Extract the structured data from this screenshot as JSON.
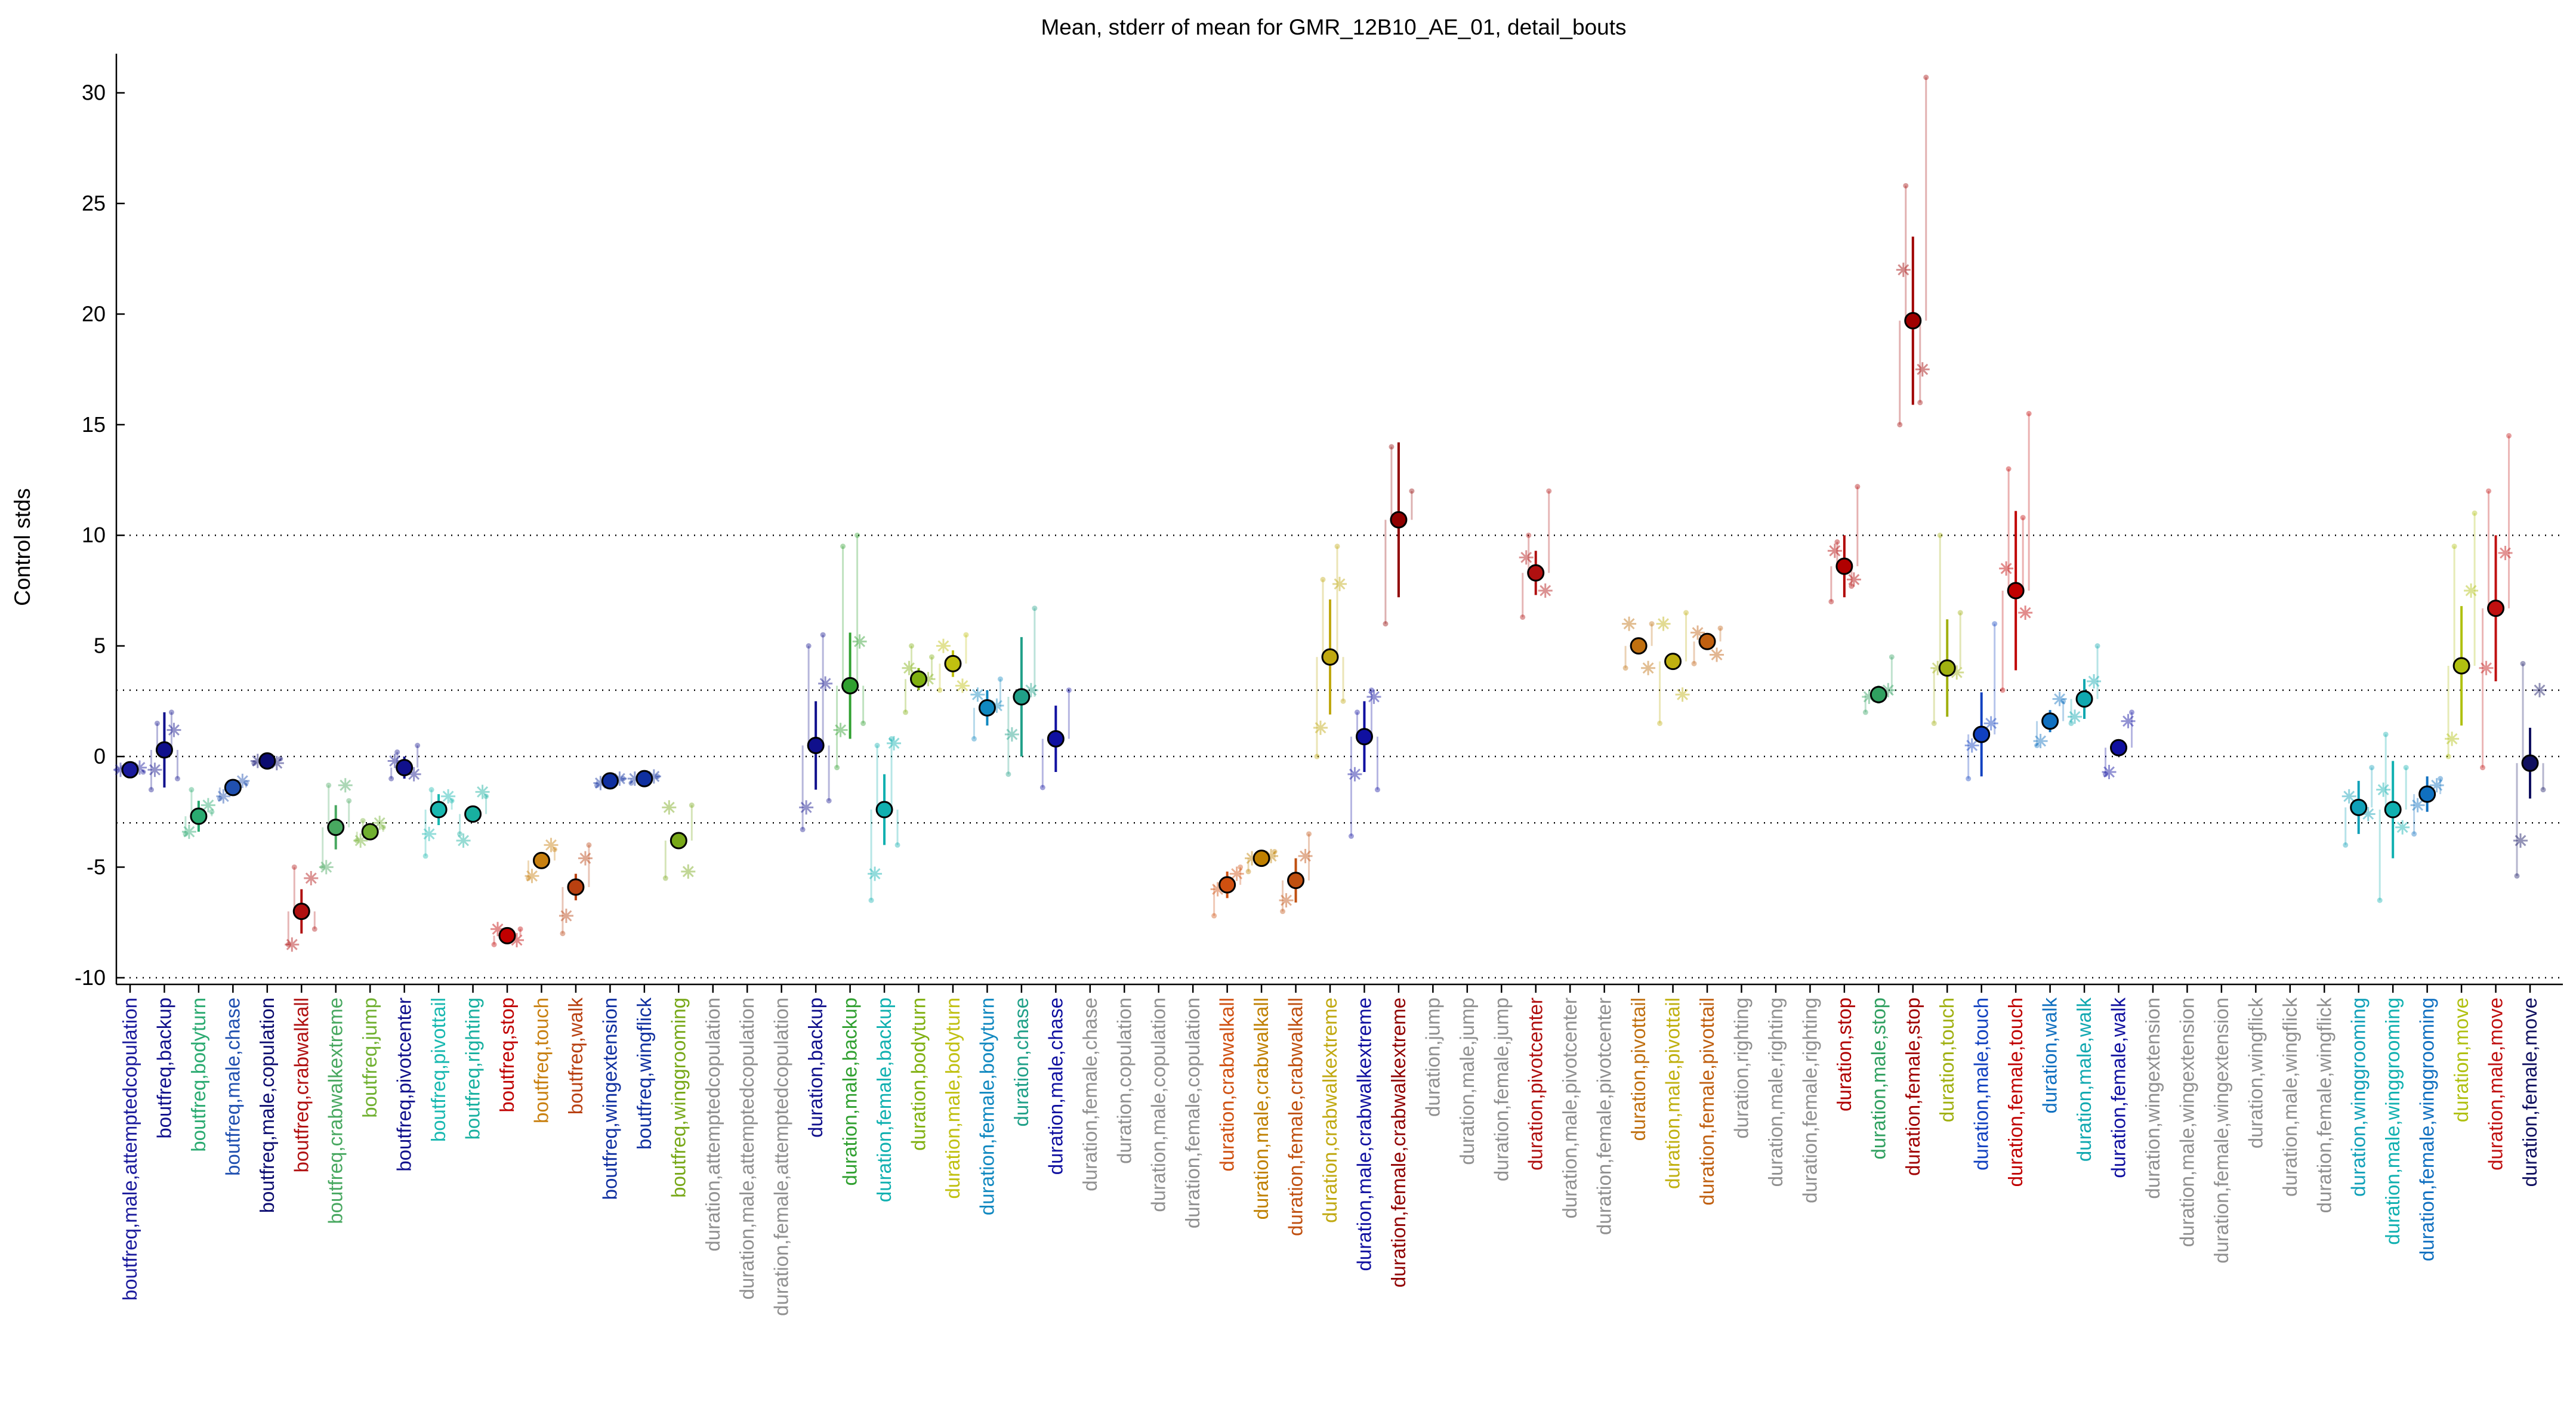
{
  "chart_data": {
    "type": "scatter",
    "title": "Mean, stderr of mean for GMR_12B10_AE_01, detail_bouts",
    "xlabel": "",
    "ylabel": "Control stds",
    "ylim": [
      -10.3,
      31.5
    ],
    "yticks": [
      -10,
      -5,
      0,
      5,
      10,
      15,
      20,
      25,
      30
    ],
    "reference_lines": [
      -10,
      -3,
      0,
      3,
      10
    ],
    "grid": false,
    "categories": [
      {
        "label": "boutfreq,male,attemptedcopulation",
        "color": "#1a1a9c",
        "mean": -0.6,
        "se": 0.3,
        "points": [
          -0.6,
          -0.7,
          -0.5
        ],
        "stars": [
          -0.6,
          -0.5
        ]
      },
      {
        "label": "boutfreq,backup",
        "color": "#10108c",
        "mean": 0.3,
        "se": 1.7,
        "points": [
          -1.5,
          -1.0,
          1.5,
          2.0
        ],
        "stars": [
          -0.6,
          1.2
        ]
      },
      {
        "label": "boutfreq,bodyturn",
        "color": "#2aaa70",
        "mean": -2.7,
        "se": 0.7,
        "points": [
          -3.5,
          -2.5,
          -1.5
        ],
        "stars": [
          -3.4,
          -2.2
        ]
      },
      {
        "label": "boutfreq,male,chase",
        "color": "#2050b0",
        "mean": -1.4,
        "se": 0.3,
        "points": [
          -1.9,
          -1.2
        ],
        "stars": [
          -1.8,
          -1.1
        ]
      },
      {
        "label": "boutfreq,male,copulation",
        "color": "#0c0c70",
        "mean": -0.2,
        "se": 0.2,
        "points": [
          -0.3,
          -0.1
        ],
        "stars": [
          -0.2,
          -0.3
        ]
      },
      {
        "label": "boutfreq,crabwalkall",
        "color": "#b01010",
        "mean": -7.0,
        "se": 1.0,
        "points": [
          -8.5,
          -7.8,
          -5.0
        ],
        "stars": [
          -8.5,
          -5.5
        ]
      },
      {
        "label": "boutfreq,crabwalkextreme",
        "color": "#48a860",
        "mean": -3.2,
        "se": 1.0,
        "points": [
          -5.0,
          -2.0,
          -1.3
        ],
        "stars": [
          -5.0,
          -1.3
        ]
      },
      {
        "label": "boutfreq,jump",
        "color": "#70b030",
        "mean": -3.4,
        "se": 0.3,
        "points": [
          -3.8,
          -3.2,
          -2.9
        ],
        "stars": [
          -3.8,
          -3.0
        ]
      },
      {
        "label": "boutfreq,pivotcenter",
        "color": "#10108c",
        "mean": -0.5,
        "se": 0.5,
        "points": [
          -1.0,
          0.5,
          0.2
        ],
        "stars": [
          -0.2,
          -0.8
        ]
      },
      {
        "label": "boutfreq,pivottail",
        "color": "#18b8b0",
        "mean": -2.4,
        "se": 0.7,
        "points": [
          -4.5,
          -2.0,
          -1.5
        ],
        "stars": [
          -3.5,
          -1.8
        ]
      },
      {
        "label": "boutfreq,righting",
        "color": "#18b0a0",
        "mean": -2.6,
        "se": 0.3,
        "points": [
          -3.5,
          -1.8
        ],
        "stars": [
          -3.8,
          -1.6
        ]
      },
      {
        "label": "boutfreq,stop",
        "color": "#c00000",
        "mean": -8.1,
        "se": 0.3,
        "points": [
          -8.5,
          -7.8
        ],
        "stars": [
          -7.8,
          -8.3
        ]
      },
      {
        "label": "boutfreq,touch",
        "color": "#c88010",
        "mean": -4.7,
        "se": 0.3,
        "points": [
          -5.5,
          -4.2
        ],
        "stars": [
          -5.4,
          -4.0
        ]
      },
      {
        "label": "boutfreq,walk",
        "color": "#b84010",
        "mean": -5.9,
        "se": 0.6,
        "points": [
          -8.0,
          -4.0
        ],
        "stars": [
          -7.2,
          -4.6
        ]
      },
      {
        "label": "boutfreq,wingextension",
        "color": "#1030a0",
        "mean": -1.1,
        "se": 0.2,
        "points": [
          -1.3,
          -1.0
        ],
        "stars": [
          -1.2,
          -1.0
        ]
      },
      {
        "label": "boutfreq,wingflick",
        "color": "#1030a0",
        "mean": -1.0,
        "se": 0.2,
        "points": [
          -1.2,
          -0.9
        ],
        "stars": [
          -1.0,
          -0.9
        ]
      },
      {
        "label": "boutfreq,winggrooming",
        "color": "#78a818",
        "mean": -3.8,
        "se": 0.3,
        "points": [
          -5.5,
          -2.2
        ],
        "stars": [
          -2.3,
          -5.2
        ]
      },
      {
        "label": "duration,attemptedcopulation",
        "color": "#909090",
        "mean": null,
        "se": null,
        "points": [],
        "stars": []
      },
      {
        "label": "duration,male,attemptedcopulation",
        "color": "#909090",
        "mean": null,
        "se": null,
        "points": [],
        "stars": []
      },
      {
        "label": "duration,female,attemptedcopulation",
        "color": "#909090",
        "mean": null,
        "se": null,
        "points": [],
        "stars": []
      },
      {
        "label": "duration,backup",
        "color": "#10108c",
        "mean": 0.5,
        "se": 2.0,
        "points": [
          -3.3,
          -2.0,
          5.0,
          5.5
        ],
        "stars": [
          -2.3,
          3.3
        ]
      },
      {
        "label": "duration,male,backup",
        "color": "#30a030",
        "mean": 3.2,
        "se": 2.4,
        "points": [
          -0.5,
          1.5,
          9.5,
          10.0
        ],
        "stars": [
          1.2,
          5.2
        ]
      },
      {
        "label": "duration,female,backup",
        "color": "#10b0b0",
        "mean": -2.4,
        "se": 1.6,
        "points": [
          -6.5,
          -4.0,
          0.5,
          0.8
        ],
        "stars": [
          -5.3,
          0.6
        ]
      },
      {
        "label": "duration,bodyturn",
        "color": "#80b010",
        "mean": 3.5,
        "se": 0.5,
        "points": [
          2.0,
          4.5,
          5.0
        ],
        "stars": [
          4.0,
          3.5
        ]
      },
      {
        "label": "duration,male,bodyturn",
        "color": "#c0c010",
        "mean": 4.2,
        "se": 0.6,
        "points": [
          3.0,
          5.5
        ],
        "stars": [
          5.0,
          3.2
        ]
      },
      {
        "label": "duration,female,bodyturn",
        "color": "#1088c0",
        "mean": 2.2,
        "se": 0.8,
        "points": [
          0.8,
          3.5
        ],
        "stars": [
          2.8,
          2.3
        ]
      },
      {
        "label": "duration,chase",
        "color": "#20a088",
        "mean": 2.7,
        "se": 2.7,
        "points": [
          -0.8,
          6.7
        ],
        "stars": [
          1.0,
          3.0
        ]
      },
      {
        "label": "duration,male,chase",
        "color": "#1010a0",
        "mean": 0.8,
        "se": 1.5,
        "points": [
          -1.4,
          3.0
        ],
        "stars": []
      },
      {
        "label": "duration,female,chase",
        "color": "#909090",
        "mean": null,
        "se": null,
        "points": [],
        "stars": []
      },
      {
        "label": "duration,copulation",
        "color": "#909090",
        "mean": null,
        "se": null,
        "points": [],
        "stars": []
      },
      {
        "label": "duration,male,copulation",
        "color": "#909090",
        "mean": null,
        "se": null,
        "points": [],
        "stars": []
      },
      {
        "label": "duration,female,copulation",
        "color": "#909090",
        "mean": null,
        "se": null,
        "points": [],
        "stars": []
      },
      {
        "label": "duration,crabwalkall",
        "color": "#d05010",
        "mean": -5.8,
        "se": 0.6,
        "points": [
          -7.2,
          -5.0
        ],
        "stars": [
          -6.0,
          -5.3
        ]
      },
      {
        "label": "duration,male,crabwalkall",
        "color": "#c08000",
        "mean": -4.6,
        "se": 0.3,
        "points": [
          -5.2,
          -4.3
        ],
        "stars": [
          -4.6,
          -4.5
        ]
      },
      {
        "label": "duration,female,crabwalkall",
        "color": "#c05010",
        "mean": -5.6,
        "se": 1.0,
        "points": [
          -7.0,
          -3.5
        ],
        "stars": [
          -6.5,
          -4.5
        ]
      },
      {
        "label": "duration,crabwalkextreme",
        "color": "#c0a810",
        "mean": 4.5,
        "se": 2.6,
        "points": [
          0.0,
          2.5,
          8.0,
          9.5
        ],
        "stars": [
          1.3,
          7.8
        ]
      },
      {
        "label": "duration,male,crabwalkextreme",
        "color": "#1010a0",
        "mean": 0.9,
        "se": 1.6,
        "points": [
          -3.6,
          -1.5,
          2.0,
          3.0
        ],
        "stars": [
          -0.8,
          2.7
        ]
      },
      {
        "label": "duration,female,crabwalkextreme",
        "color": "#900000",
        "mean": 10.7,
        "se": 3.5,
        "points": [
          6.0,
          12.0,
          14.0
        ],
        "stars": []
      },
      {
        "label": "duration,jump",
        "color": "#909090",
        "mean": null,
        "se": null,
        "points": [],
        "stars": []
      },
      {
        "label": "duration,male,jump",
        "color": "#909090",
        "mean": null,
        "se": null,
        "points": [],
        "stars": []
      },
      {
        "label": "duration,female,jump",
        "color": "#909090",
        "mean": null,
        "se": null,
        "points": [],
        "stars": []
      },
      {
        "label": "duration,pivotcenter",
        "color": "#b01010",
        "mean": 8.3,
        "se": 1.0,
        "points": [
          6.3,
          12.0,
          10.0
        ],
        "stars": [
          9.0,
          7.5
        ]
      },
      {
        "label": "duration,male,pivotcenter",
        "color": "#909090",
        "mean": null,
        "se": null,
        "points": [],
        "stars": []
      },
      {
        "label": "duration,female,pivotcenter",
        "color": "#909090",
        "mean": null,
        "se": null,
        "points": [],
        "stars": []
      },
      {
        "label": "duration,pivottail",
        "color": "#c07010",
        "mean": 5.0,
        "se": 0.3,
        "points": [
          4.0,
          6.0
        ],
        "stars": [
          6.0,
          4.0
        ]
      },
      {
        "label": "duration,male,pivottail",
        "color": "#c0b010",
        "mean": 4.3,
        "se": 0.3,
        "points": [
          1.5,
          6.5
        ],
        "stars": [
          6.0,
          2.8
        ]
      },
      {
        "label": "duration,female,pivottail",
        "color": "#c06010",
        "mean": 5.2,
        "se": 0.3,
        "points": [
          4.2,
          5.8
        ],
        "stars": [
          5.6,
          4.6
        ]
      },
      {
        "label": "duration,righting",
        "color": "#909090",
        "mean": null,
        "se": null,
        "points": [],
        "stars": []
      },
      {
        "label": "duration,male,righting",
        "color": "#909090",
        "mean": null,
        "se": null,
        "points": [],
        "stars": []
      },
      {
        "label": "duration,female,righting",
        "color": "#909090",
        "mean": null,
        "se": null,
        "points": [],
        "stars": []
      },
      {
        "label": "duration,stop",
        "color": "#b00000",
        "mean": 8.6,
        "se": 1.4,
        "points": [
          7.0,
          12.2,
          9.7,
          7.7
        ],
        "stars": [
          9.3,
          8.0
        ]
      },
      {
        "label": "duration,male,stop",
        "color": "#30a060",
        "mean": 2.8,
        "se": 0.4,
        "points": [
          2.0,
          4.5
        ],
        "stars": [
          2.7,
          3.0
        ]
      },
      {
        "label": "duration,female,stop",
        "color": "#a00000",
        "mean": 19.7,
        "se": 3.8,
        "points": [
          15.0,
          30.7,
          25.8,
          16.0
        ],
        "stars": [
          22.0,
          17.5
        ]
      },
      {
        "label": "duration,touch",
        "color": "#a0b010",
        "mean": 4.0,
        "se": 2.2,
        "points": [
          1.5,
          6.5,
          10.0
        ],
        "stars": [
          4.0,
          3.8
        ]
      },
      {
        "label": "duration,male,touch",
        "color": "#1040c0",
        "mean": 1.0,
        "se": 1.9,
        "points": [
          -1.0,
          6.0
        ],
        "stars": [
          0.5,
          1.5
        ]
      },
      {
        "label": "duration,female,touch",
        "color": "#c00000",
        "mean": 7.5,
        "se": 3.6,
        "points": [
          3.0,
          15.5,
          13.0,
          10.8
        ],
        "stars": [
          8.5,
          6.5
        ]
      },
      {
        "label": "duration,walk",
        "color": "#1070c0",
        "mean": 1.6,
        "se": 0.5,
        "points": [
          0.5,
          2.5
        ],
        "stars": [
          0.7,
          2.6
        ]
      },
      {
        "label": "duration,male,walk",
        "color": "#10a8b0",
        "mean": 2.6,
        "se": 0.9,
        "points": [
          1.5,
          5.0
        ],
        "stars": [
          1.8,
          3.4
        ]
      },
      {
        "label": "duration,female,walk",
        "color": "#1010a0",
        "mean": 0.4,
        "se": 0.3,
        "points": [
          -0.8,
          2.0
        ],
        "stars": [
          -0.7,
          1.6
        ]
      },
      {
        "label": "duration,wingextension",
        "color": "#909090",
        "mean": null,
        "se": null,
        "points": [],
        "stars": []
      },
      {
        "label": "duration,male,wingextension",
        "color": "#909090",
        "mean": null,
        "se": null,
        "points": [],
        "stars": []
      },
      {
        "label": "duration,female,wingextension",
        "color": "#909090",
        "mean": null,
        "se": null,
        "points": [],
        "stars": []
      },
      {
        "label": "duration,wingflick",
        "color": "#909090",
        "mean": null,
        "se": null,
        "points": [],
        "stars": []
      },
      {
        "label": "duration,male,wingflick",
        "color": "#909090",
        "mean": null,
        "se": null,
        "points": [],
        "stars": []
      },
      {
        "label": "duration,female,wingflick",
        "color": "#909090",
        "mean": null,
        "se": null,
        "points": [],
        "stars": []
      },
      {
        "label": "duration,winggrooming",
        "color": "#10a0b8",
        "mean": -2.3,
        "se": 1.2,
        "points": [
          -4.0,
          -0.5
        ],
        "stars": [
          -1.8,
          -2.6
        ]
      },
      {
        "label": "duration,male,winggrooming",
        "color": "#10b0b0",
        "mean": -2.4,
        "se": 2.2,
        "points": [
          -6.5,
          -0.5,
          1.0
        ],
        "stars": [
          -1.5,
          -3.2
        ]
      },
      {
        "label": "duration,female,winggrooming",
        "color": "#1070c0",
        "mean": -1.7,
        "se": 0.8,
        "points": [
          -3.5,
          -1.0
        ],
        "stars": [
          -2.2,
          -1.3
        ]
      },
      {
        "label": "duration,move",
        "color": "#b0c010",
        "mean": 4.1,
        "se": 2.7,
        "points": [
          0.0,
          11.0,
          9.5
        ],
        "stars": [
          0.8,
          7.5
        ]
      },
      {
        "label": "duration,male,move",
        "color": "#c01010",
        "mean": 6.7,
        "se": 3.3,
        "points": [
          -0.5,
          14.5,
          12.0
        ],
        "stars": [
          4.0,
          9.2
        ]
      },
      {
        "label": "duration,female,move",
        "color": "#101060",
        "mean": -0.3,
        "se": 1.6,
        "points": [
          -5.4,
          -1.5,
          4.2
        ],
        "stars": [
          -3.8,
          3.0
        ]
      }
    ]
  }
}
